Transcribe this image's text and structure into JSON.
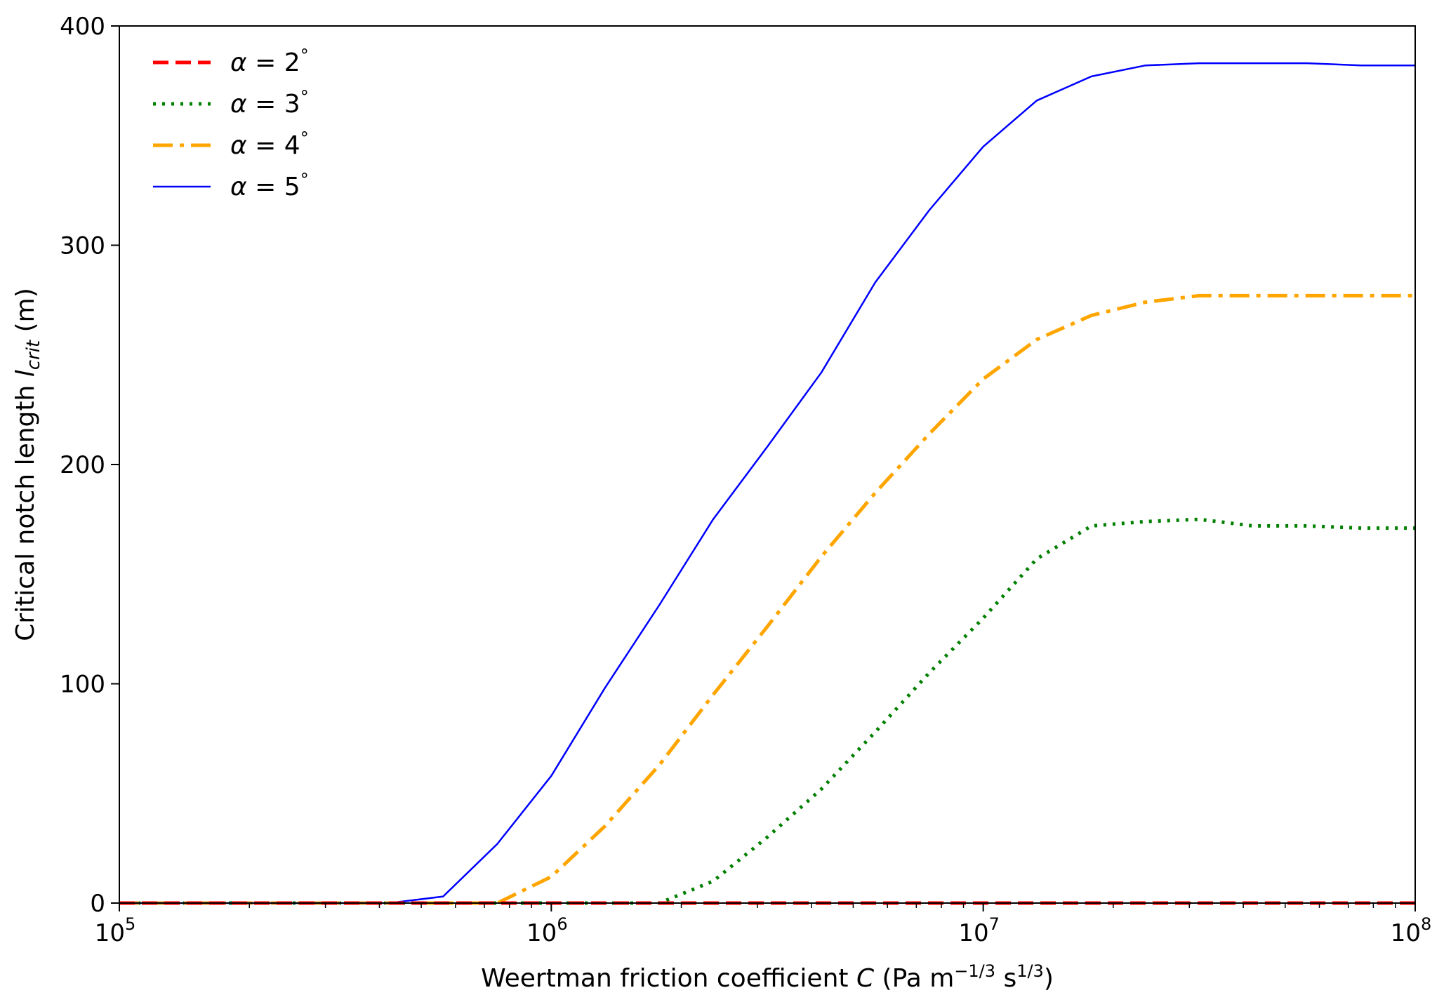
{
  "chart_data": {
    "type": "line",
    "xlabel": {
      "prefix": "Weertman friction coefficient ",
      "var": "C",
      "units_open": " (Pa m",
      "units_sup1": "−1/3",
      "units_mid": " s",
      "units_sup2": "1/3",
      "units_close": ")"
    },
    "ylabel": {
      "prefix": "Critical notch length ",
      "var": "l",
      "sub": "crit",
      "suffix": " (m)"
    },
    "xscale": "log",
    "xlim": [
      100000,
      100000000
    ],
    "ylim": [
      0,
      400
    ],
    "yticks": [
      0,
      100,
      200,
      300,
      400
    ],
    "xticks": [
      {
        "value": 100000,
        "base": "10",
        "exp": "5"
      },
      {
        "value": 1000000,
        "base": "10",
        "exp": "6"
      },
      {
        "value": 10000000,
        "base": "10",
        "exp": "7"
      },
      {
        "value": 100000000,
        "base": "10",
        "exp": "8"
      }
    ],
    "grid": false,
    "legend_position": "top-left",
    "x": [
      100000,
      133000,
      178000,
      237000,
      316000,
      422000,
      562000,
      750000,
      1000000,
      1330000,
      1780000,
      2370000,
      3160000,
      4220000,
      5620000,
      7500000,
      10000000,
      13300000,
      17800000,
      23700000,
      31600000,
      42200000,
      56200000,
      75000000,
      100000000
    ],
    "series": [
      {
        "name": "α = 2°",
        "var": "α",
        "rest": " = 2",
        "deg": "°",
        "color": "#ff0000",
        "style": "dashed",
        "values": [
          0,
          0,
          0,
          0,
          0,
          0,
          0,
          0,
          0,
          0,
          0,
          0,
          0,
          0,
          0,
          0,
          0,
          0,
          0,
          0,
          0,
          0,
          0,
          0,
          0
        ]
      },
      {
        "name": "α = 3°",
        "var": "α",
        "rest": " = 3",
        "deg": "°",
        "color": "#008000",
        "style": "dotted",
        "values": [
          0,
          0,
          0,
          0,
          0,
          0,
          0,
          0,
          0,
          0,
          0,
          10,
          30,
          52,
          78,
          105,
          130,
          157,
          172,
          174,
          175,
          172,
          172,
          171,
          171
        ]
      },
      {
        "name": "α = 4°",
        "var": "α",
        "rest": " = 4",
        "deg": "°",
        "color": "#ffa500",
        "style": "dashdot",
        "values": [
          0,
          0,
          0,
          0,
          0,
          0,
          0,
          0,
          12,
          35,
          63,
          95,
          126,
          158,
          187,
          214,
          239,
          257,
          268,
          274,
          277,
          277,
          277,
          277,
          277
        ]
      },
      {
        "name": "α = 5°",
        "var": "α",
        "rest": " = 5",
        "deg": "°",
        "color": "#0000ff",
        "style": "solid",
        "values": [
          0,
          0,
          0,
          0,
          0,
          0,
          3,
          27,
          58,
          98,
          136,
          175,
          208,
          242,
          283,
          316,
          345,
          366,
          377,
          382,
          383,
          383,
          383,
          382,
          382
        ]
      }
    ]
  }
}
